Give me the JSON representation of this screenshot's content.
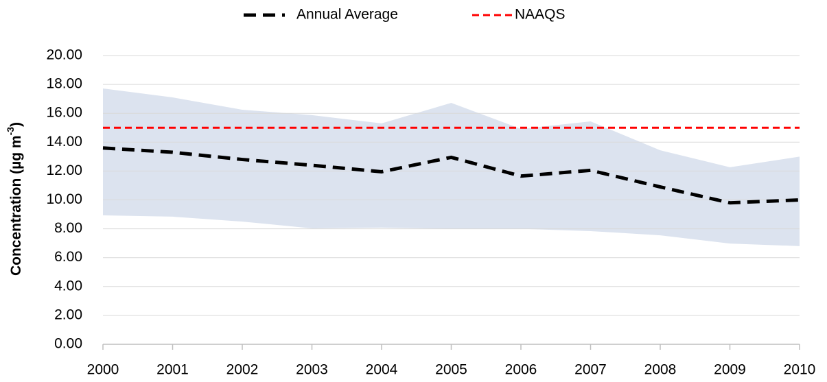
{
  "chart_data": {
    "type": "line",
    "x": [
      2000,
      2001,
      2002,
      2003,
      2004,
      2005,
      2006,
      2007,
      2008,
      2009,
      2010
    ],
    "xlim": [
      2000,
      2010
    ],
    "xticks": [
      2000,
      2001,
      2002,
      2003,
      2004,
      2005,
      2006,
      2007,
      2008,
      2009,
      2010
    ],
    "ylim": [
      0,
      20
    ],
    "yticks": [
      {
        "value": 0,
        "label": "0.00"
      },
      {
        "value": 2,
        "label": "2.00"
      },
      {
        "value": 4,
        "label": "4.00"
      },
      {
        "value": 6,
        "label": "6.00"
      },
      {
        "value": 8,
        "label": "8.00"
      },
      {
        "value": 10,
        "label": "10.00"
      },
      {
        "value": 12,
        "label": "12.00"
      },
      {
        "value": 14,
        "label": "14.00"
      },
      {
        "value": 16,
        "label": "16.00"
      },
      {
        "value": 18,
        "label": "18.00"
      },
      {
        "value": 20,
        "label": "20.00"
      }
    ],
    "ylabel": {
      "text": "Concentration (µg m",
      "superscript": "-3",
      "suffix": ")"
    },
    "grid": true,
    "legend": "top",
    "band": {
      "color": "#dce3ef",
      "upper": [
        17.72,
        17.1,
        16.25,
        15.87,
        15.3,
        16.72,
        14.92,
        15.44,
        13.44,
        12.26,
        13.0
      ],
      "lower": [
        8.93,
        8.84,
        8.5,
        8.03,
        8.08,
        8.0,
        8.0,
        7.84,
        7.55,
        6.98,
        6.8
      ]
    },
    "series": [
      {
        "name": "Annual Average",
        "color": "#000000",
        "width": 5,
        "dash": "18 10",
        "values": [
          13.6,
          13.3,
          12.8,
          12.4,
          11.95,
          12.95,
          11.65,
          12.05,
          10.9,
          9.8,
          10.0
        ]
      },
      {
        "name": "NAAQS",
        "color": "#ff0000",
        "width": 3,
        "dash": "10 6",
        "values": [
          15,
          15,
          15,
          15,
          15,
          15,
          15,
          15,
          15,
          15,
          15
        ]
      }
    ]
  }
}
